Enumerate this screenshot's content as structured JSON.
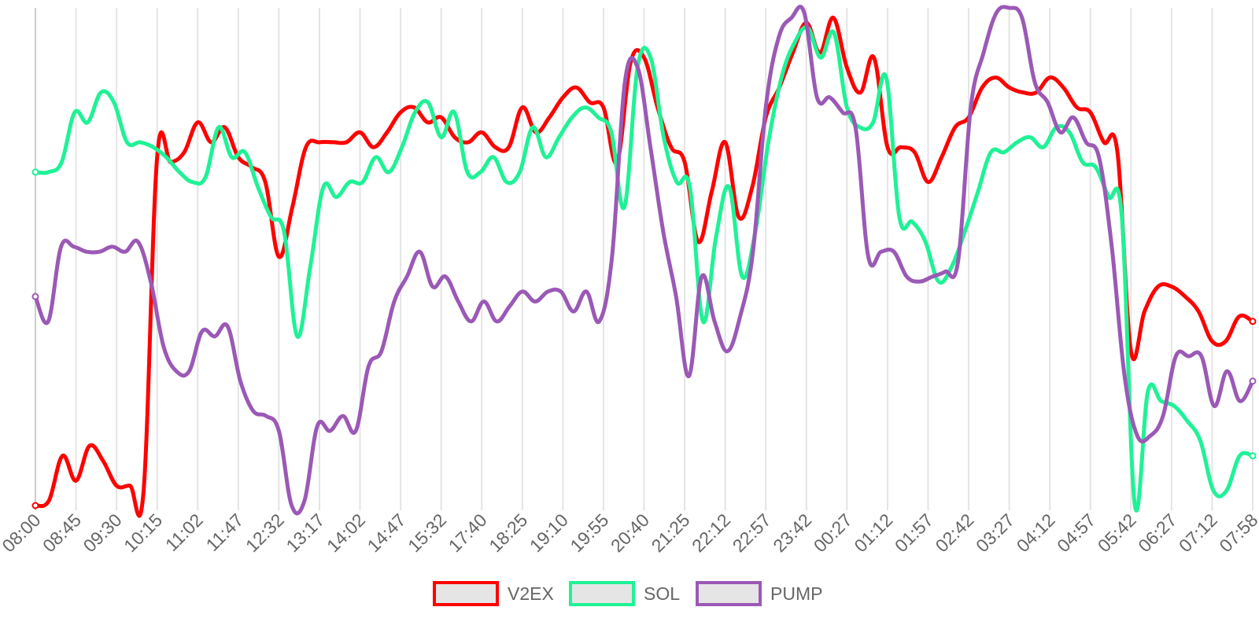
{
  "chart_data": {
    "type": "line",
    "title": "",
    "xlabel": "",
    "ylabel": "",
    "x_ticks": [
      "08:00",
      "08:45",
      "09:30",
      "10:15",
      "11:02",
      "11:47",
      "12:32",
      "13:17",
      "14:02",
      "14:47",
      "15:32",
      "17:40",
      "18:25",
      "19:10",
      "19:55",
      "20:40",
      "21:25",
      "22:12",
      "22:57",
      "23:42",
      "00:27",
      "01:12",
      "01:57",
      "02:42",
      "03:27",
      "04:12",
      "04:57",
      "05:42",
      "06:27",
      "07:12",
      "07:58"
    ],
    "ylim": [
      0,
      100
    ],
    "grid": "vertical",
    "legend_position": "bottom",
    "series": [
      {
        "name": "V2EX",
        "color": "#ff0000",
        "values": [
          0,
          1,
          10,
          5,
          12,
          9,
          4,
          4,
          3,
          70,
          69,
          71,
          77,
          73,
          76,
          70,
          68,
          65,
          50,
          60,
          72,
          73,
          73,
          73,
          75,
          72,
          75,
          79,
          80,
          77,
          78,
          74,
          73,
          75,
          72,
          72,
          80,
          75,
          78,
          82,
          84,
          81,
          80,
          69,
          89,
          90,
          80,
          72,
          69,
          53,
          63,
          73,
          58,
          64,
          78,
          84,
          91,
          97,
          91,
          98,
          88,
          83,
          90,
          72,
          72,
          71,
          65,
          70,
          76,
          78,
          84,
          86,
          84,
          83,
          83,
          86,
          84,
          80,
          79,
          73,
          71,
          31,
          39,
          44,
          44,
          42,
          39,
          33,
          33,
          38,
          37
        ]
      },
      {
        "name": "SOL",
        "color": "#1ff296",
        "values": [
          67,
          67,
          69,
          79,
          77,
          83,
          81,
          73,
          73,
          72,
          70,
          67,
          65,
          66,
          76,
          70,
          71,
          64,
          58,
          55,
          34,
          48,
          64,
          62,
          65,
          65,
          70,
          67,
          72,
          79,
          81,
          74,
          79,
          67,
          67,
          70,
          65,
          67,
          76,
          70,
          74,
          78,
          80,
          78,
          75,
          60,
          88,
          90,
          74,
          65,
          64,
          37,
          54,
          64,
          46,
          55,
          73,
          86,
          93,
          96,
          90,
          95,
          80,
          76,
          77,
          86,
          58,
          57,
          53,
          45,
          48,
          55,
          63,
          71,
          71,
          73,
          74,
          72,
          76,
          75,
          69,
          68,
          62,
          58,
          0,
          23,
          21,
          20,
          17,
          13,
          3,
          3,
          10,
          10
        ]
      },
      {
        "name": "PUMP",
        "color": "#9b59b6",
        "values": [
          42,
          37,
          52,
          52,
          51,
          51,
          52,
          51,
          53,
          45,
          32,
          27,
          27,
          35,
          34,
          36,
          25,
          19,
          18,
          15,
          0,
          1,
          16,
          15,
          18,
          15,
          28,
          31,
          41,
          46,
          51,
          44,
          46,
          41,
          37,
          41,
          37,
          40,
          43,
          41,
          43,
          43,
          39,
          43,
          37,
          50,
          85,
          88,
          72,
          55,
          42,
          26,
          46,
          37,
          31,
          38,
          51,
          80,
          94,
          98,
          99,
          82,
          82,
          79,
          76,
          50,
          51,
          51,
          46,
          45,
          46,
          47,
          49,
          80,
          91,
          99,
          100,
          98,
          85,
          81,
          75,
          78,
          73,
          70,
          52,
          26,
          14,
          14,
          18,
          30,
          30,
          30,
          20,
          27,
          21,
          25
        ]
      }
    ]
  },
  "legend": [
    {
      "name": "V2EX",
      "color": "#ff0000"
    },
    {
      "name": "SOL",
      "color": "#1ff296"
    },
    {
      "name": "PUMP",
      "color": "#9b59b6"
    }
  ]
}
